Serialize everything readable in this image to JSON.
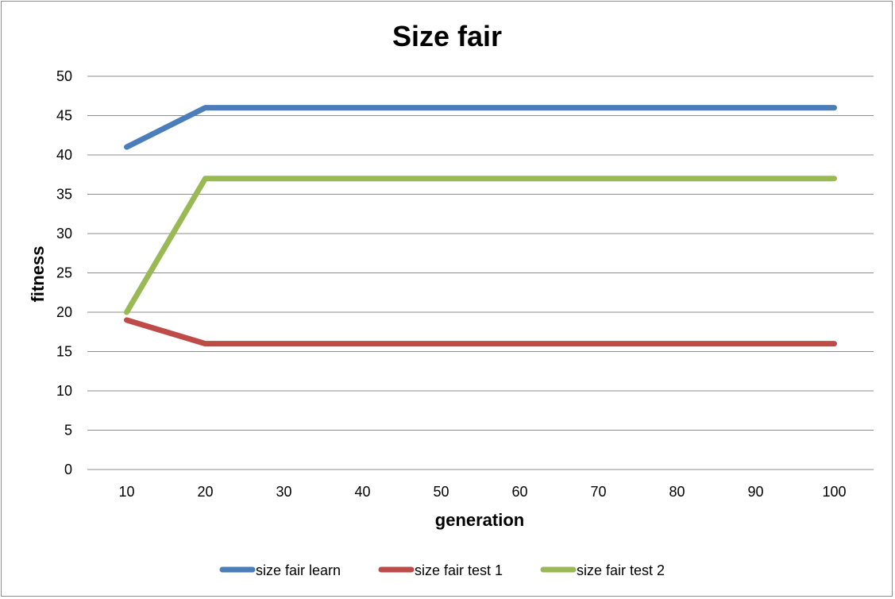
{
  "chart_data": {
    "type": "line",
    "title": "Size fair",
    "xlabel": "generation",
    "ylabel": "fitness",
    "categories": [
      "10",
      "20",
      "30",
      "40",
      "50",
      "60",
      "70",
      "80",
      "90",
      "100"
    ],
    "ylim": [
      0,
      50
    ],
    "yticks": [
      "0",
      "5",
      "10",
      "15",
      "20",
      "25",
      "30",
      "35",
      "40",
      "45",
      "50"
    ],
    "grid": true,
    "legend_position": "bottom",
    "series": [
      {
        "name": "size fair learn",
        "color": "#4a7ebb",
        "values": [
          41,
          46,
          46,
          46,
          46,
          46,
          46,
          46,
          46,
          46
        ]
      },
      {
        "name": "size fair test 1",
        "color": "#be4b48",
        "values": [
          19,
          16,
          16,
          16,
          16,
          16,
          16,
          16,
          16,
          16
        ]
      },
      {
        "name": "size fair test 2",
        "color": "#98b954",
        "values": [
          20,
          37,
          37,
          37,
          37,
          37,
          37,
          37,
          37,
          37
        ]
      }
    ]
  }
}
